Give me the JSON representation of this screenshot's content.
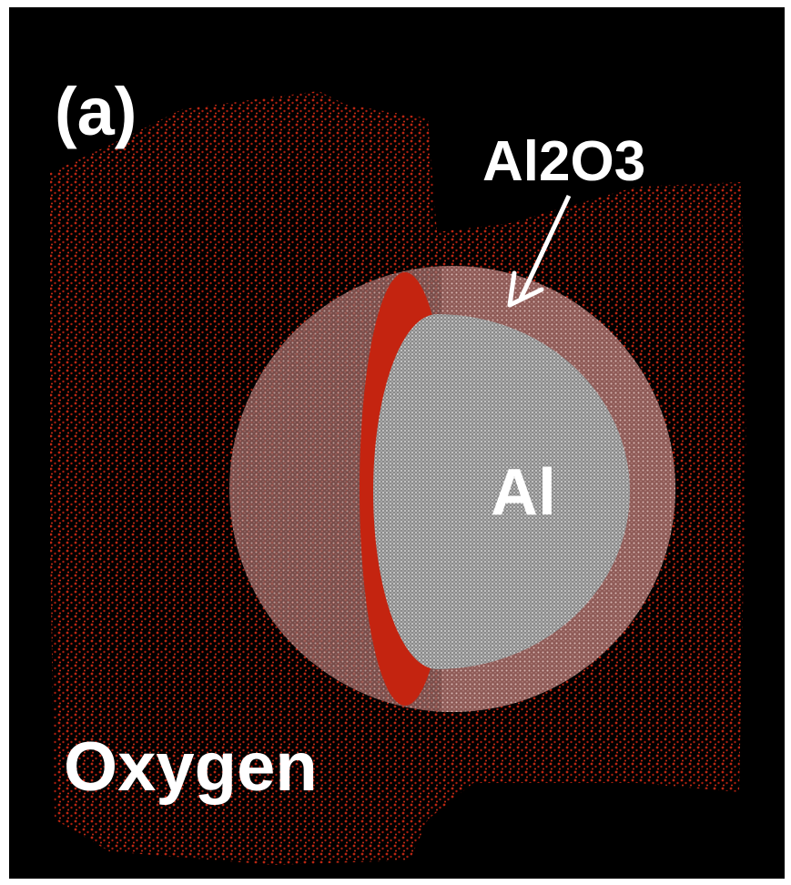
{
  "panel_label": "(a)",
  "labels": {
    "shell": "Al2O3",
    "core": "Al",
    "gas": "Oxygen"
  }
}
